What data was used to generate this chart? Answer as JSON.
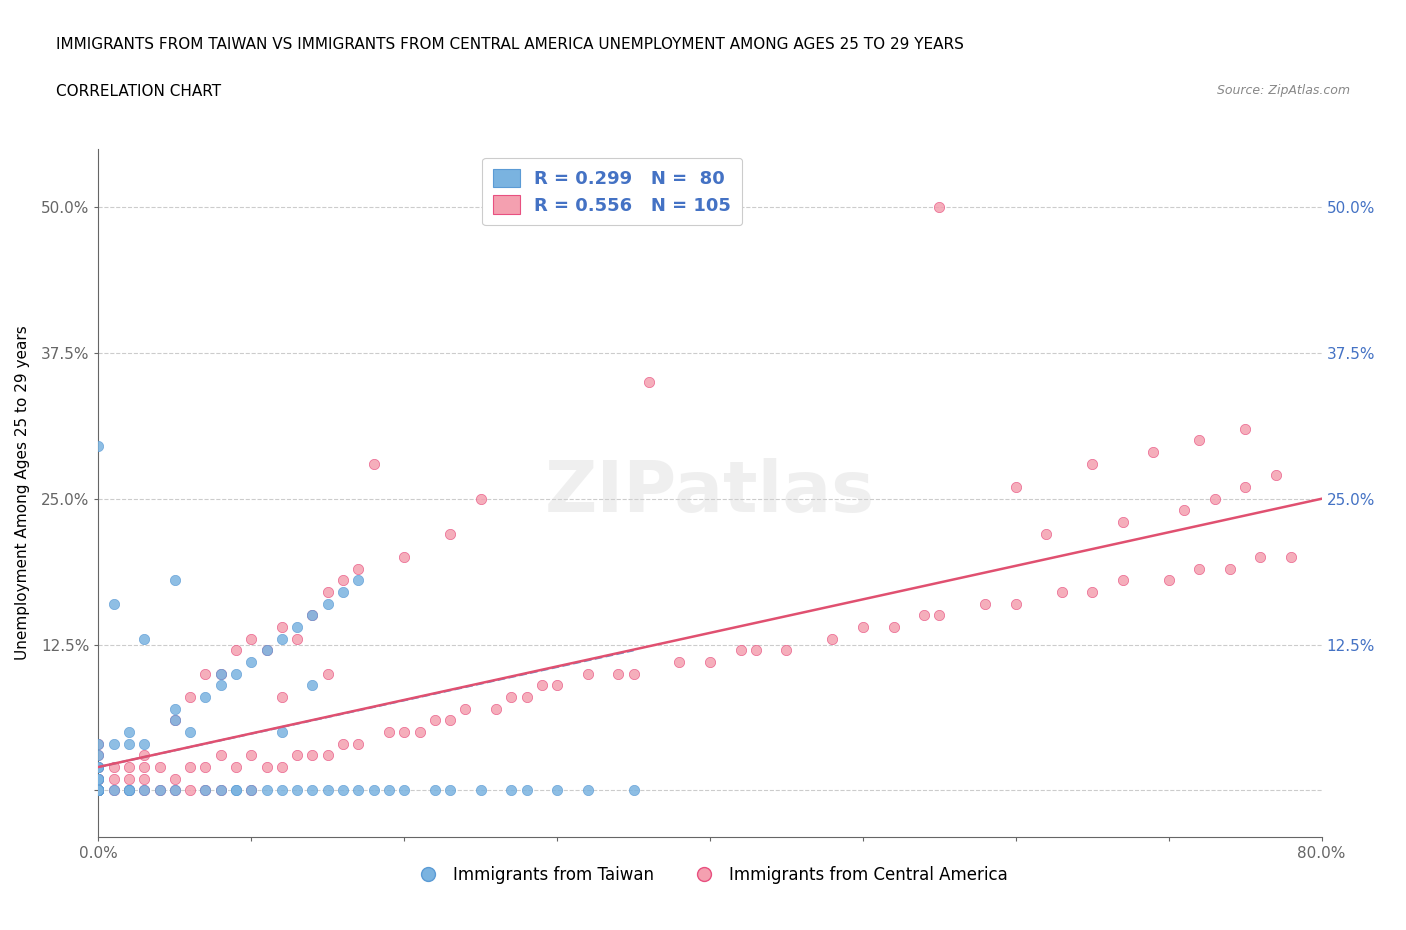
{
  "title_line1": "IMMIGRANTS FROM TAIWAN VS IMMIGRANTS FROM CENTRAL AMERICA UNEMPLOYMENT AMONG AGES 25 TO 29 YEARS",
  "title_line2": "CORRELATION CHART",
  "source_text": "Source: ZipAtlas.com",
  "xlabel": "",
  "ylabel": "Unemployment Among Ages 25 to 29 years",
  "xlim": [
    0.0,
    0.8
  ],
  "ylim": [
    -0.04,
    0.55
  ],
  "xticks": [
    0.0,
    0.1,
    0.2,
    0.3,
    0.4,
    0.5,
    0.6,
    0.7,
    0.8
  ],
  "xticklabels": [
    "0.0%",
    "",
    "",
    "",
    "",
    "",
    "",
    "",
    "80.0%"
  ],
  "ytick_positions": [
    0.0,
    0.125,
    0.25,
    0.375,
    0.5
  ],
  "ytick_labels": [
    "",
    "12.5%",
    "25.0%",
    "37.5%",
    "50.0%"
  ],
  "taiwan_color": "#7ab3e0",
  "taiwan_color_dark": "#5b9bd5",
  "central_color": "#f4a0b0",
  "central_color_dark": "#e85080",
  "taiwan_R": 0.299,
  "taiwan_N": 80,
  "central_R": 0.556,
  "central_N": 105,
  "legend_label_taiwan": "R = 0.299   N =  80",
  "legend_label_central": "R = 0.556   N = 105",
  "bottom_legend_taiwan": "Immigrants from Taiwan",
  "bottom_legend_central": "Immigrants from Central America",
  "watermark": "ZIPatlas",
  "taiwan_scatter_x": [
    0.0,
    0.0,
    0.0,
    0.0,
    0.0,
    0.0,
    0.0,
    0.0,
    0.0,
    0.0,
    0.0,
    0.0,
    0.0,
    0.0,
    0.0,
    0.0,
    0.0,
    0.0,
    0.0,
    0.0,
    0.0,
    0.0,
    0.0,
    0.0,
    0.0,
    0.0,
    0.01,
    0.01,
    0.01,
    0.02,
    0.02,
    0.02,
    0.02,
    0.02,
    0.03,
    0.03,
    0.03,
    0.04,
    0.05,
    0.05,
    0.05,
    0.05,
    0.06,
    0.07,
    0.07,
    0.08,
    0.08,
    0.08,
    0.09,
    0.09,
    0.09,
    0.1,
    0.1,
    0.11,
    0.11,
    0.12,
    0.12,
    0.12,
    0.13,
    0.13,
    0.14,
    0.14,
    0.14,
    0.15,
    0.15,
    0.16,
    0.16,
    0.17,
    0.17,
    0.18,
    0.19,
    0.2,
    0.22,
    0.23,
    0.25,
    0.27,
    0.28,
    0.3,
    0.32,
    0.35
  ],
  "taiwan_scatter_y": [
    0.0,
    0.0,
    0.0,
    0.0,
    0.0,
    0.0,
    0.0,
    0.0,
    0.0,
    0.0,
    0.0,
    0.0,
    0.0,
    0.0,
    0.0,
    0.0,
    0.01,
    0.01,
    0.01,
    0.01,
    0.02,
    0.02,
    0.02,
    0.03,
    0.04,
    0.295,
    0.0,
    0.04,
    0.16,
    0.0,
    0.0,
    0.0,
    0.04,
    0.05,
    0.0,
    0.04,
    0.13,
    0.0,
    0.0,
    0.06,
    0.07,
    0.18,
    0.05,
    0.0,
    0.08,
    0.0,
    0.09,
    0.1,
    0.0,
    0.0,
    0.1,
    0.0,
    0.11,
    0.0,
    0.12,
    0.0,
    0.05,
    0.13,
    0.0,
    0.14,
    0.0,
    0.09,
    0.15,
    0.0,
    0.16,
    0.0,
    0.17,
    0.0,
    0.18,
    0.0,
    0.0,
    0.0,
    0.0,
    0.0,
    0.0,
    0.0,
    0.0,
    0.0,
    0.0,
    0.0
  ],
  "central_scatter_x": [
    0.0,
    0.0,
    0.0,
    0.0,
    0.0,
    0.0,
    0.0,
    0.0,
    0.0,
    0.01,
    0.01,
    0.01,
    0.02,
    0.02,
    0.02,
    0.03,
    0.03,
    0.03,
    0.03,
    0.04,
    0.04,
    0.05,
    0.05,
    0.05,
    0.06,
    0.06,
    0.06,
    0.07,
    0.07,
    0.07,
    0.08,
    0.08,
    0.08,
    0.09,
    0.09,
    0.1,
    0.1,
    0.1,
    0.11,
    0.11,
    0.12,
    0.12,
    0.12,
    0.13,
    0.13,
    0.14,
    0.14,
    0.15,
    0.15,
    0.15,
    0.16,
    0.16,
    0.17,
    0.17,
    0.18,
    0.19,
    0.2,
    0.2,
    0.21,
    0.22,
    0.23,
    0.23,
    0.24,
    0.25,
    0.26,
    0.27,
    0.28,
    0.29,
    0.3,
    0.32,
    0.34,
    0.35,
    0.36,
    0.38,
    0.4,
    0.42,
    0.43,
    0.45,
    0.48,
    0.5,
    0.52,
    0.54,
    0.55,
    0.58,
    0.6,
    0.63,
    0.65,
    0.67,
    0.7,
    0.72,
    0.74,
    0.76,
    0.78,
    0.55,
    0.62,
    0.67,
    0.71,
    0.73,
    0.75,
    0.77,
    0.6,
    0.65,
    0.69,
    0.72,
    0.75
  ],
  "central_scatter_y": [
    0.0,
    0.0,
    0.01,
    0.01,
    0.01,
    0.02,
    0.02,
    0.03,
    0.04,
    0.0,
    0.01,
    0.02,
    0.0,
    0.01,
    0.02,
    0.0,
    0.01,
    0.02,
    0.03,
    0.0,
    0.02,
    0.0,
    0.01,
    0.06,
    0.0,
    0.02,
    0.08,
    0.0,
    0.02,
    0.1,
    0.0,
    0.03,
    0.1,
    0.02,
    0.12,
    0.0,
    0.03,
    0.13,
    0.02,
    0.12,
    0.02,
    0.08,
    0.14,
    0.03,
    0.13,
    0.03,
    0.15,
    0.03,
    0.1,
    0.17,
    0.04,
    0.18,
    0.04,
    0.19,
    0.28,
    0.05,
    0.05,
    0.2,
    0.05,
    0.06,
    0.06,
    0.22,
    0.07,
    0.25,
    0.07,
    0.08,
    0.08,
    0.09,
    0.09,
    0.1,
    0.1,
    0.1,
    0.35,
    0.11,
    0.11,
    0.12,
    0.12,
    0.12,
    0.13,
    0.14,
    0.14,
    0.15,
    0.15,
    0.16,
    0.16,
    0.17,
    0.17,
    0.18,
    0.18,
    0.19,
    0.19,
    0.2,
    0.2,
    0.5,
    0.22,
    0.23,
    0.24,
    0.25,
    0.26,
    0.27,
    0.26,
    0.28,
    0.29,
    0.3,
    0.31
  ],
  "taiwan_trend_x": [
    0.0,
    0.35
  ],
  "taiwan_trend_y": [
    0.02,
    0.12
  ],
  "central_trend_x": [
    0.0,
    0.8
  ],
  "central_trend_y": [
    0.02,
    0.25
  ],
  "grid_color": "#cccccc",
  "axis_color": "#666666",
  "label_color": "#4472c4",
  "background_color": "#ffffff"
}
